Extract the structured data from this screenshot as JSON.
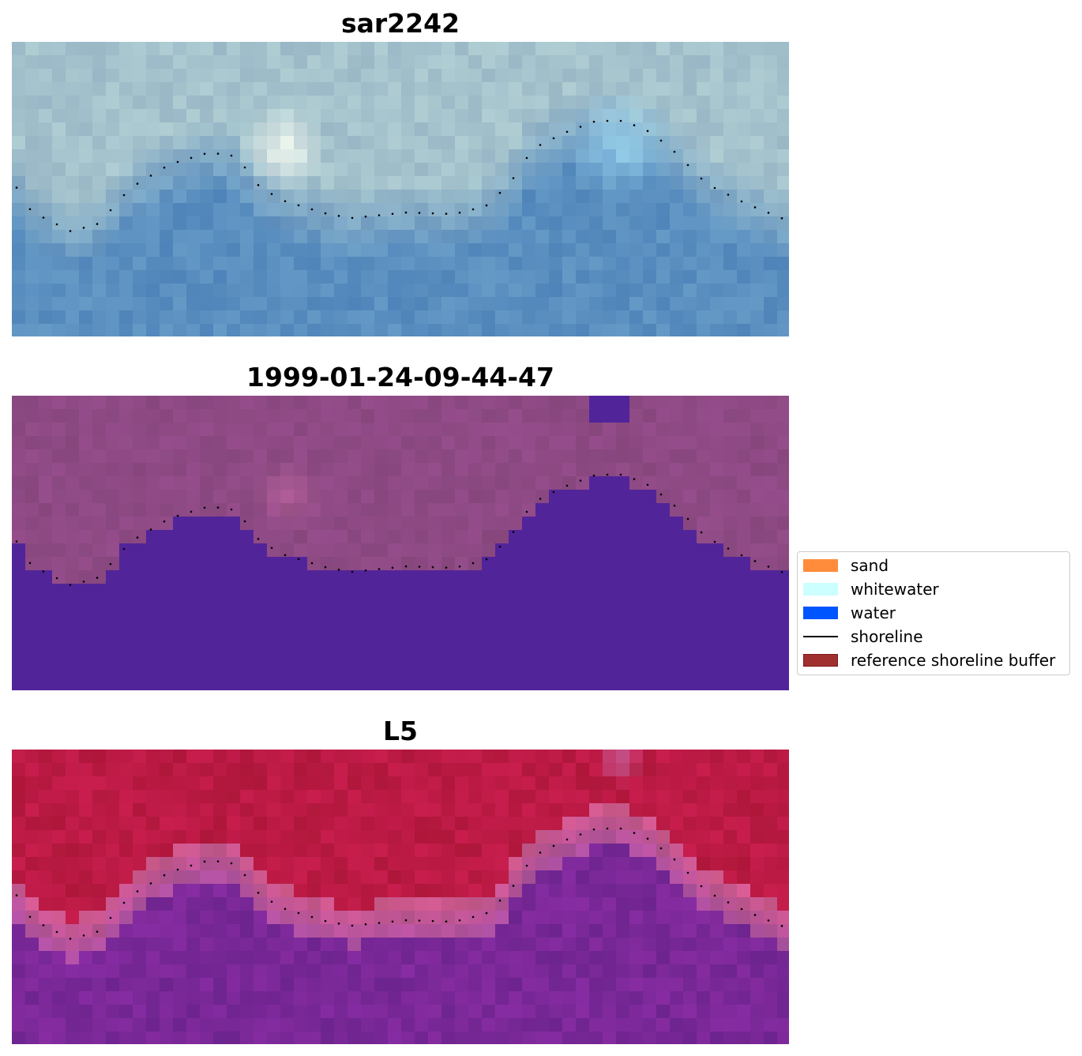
{
  "panels": [
    {
      "title": "sar2242"
    },
    {
      "title": "1999-01-24-09-44-47"
    },
    {
      "title": "L5"
    }
  ],
  "legend": {
    "items": [
      {
        "label": "sand",
        "color": "#ff8c3a",
        "kind": "patch"
      },
      {
        "label": "whitewater",
        "color": "#ccffff",
        "kind": "patch"
      },
      {
        "label": "water",
        "color": "#0055ff",
        "kind": "patch"
      },
      {
        "label": "shoreline",
        "color": "#000000",
        "kind": "line"
      },
      {
        "label": "reference shoreline buffer",
        "color": "#a03030",
        "kind": "patch"
      }
    ]
  },
  "colors": {
    "classified_land": "#8e4a84",
    "classified_water": "#52249a",
    "rgb_water": "#5a8fc0",
    "rgb_land": "#a4c2cc",
    "index_land": "#bb1a44",
    "index_water": "#7a2898"
  }
}
